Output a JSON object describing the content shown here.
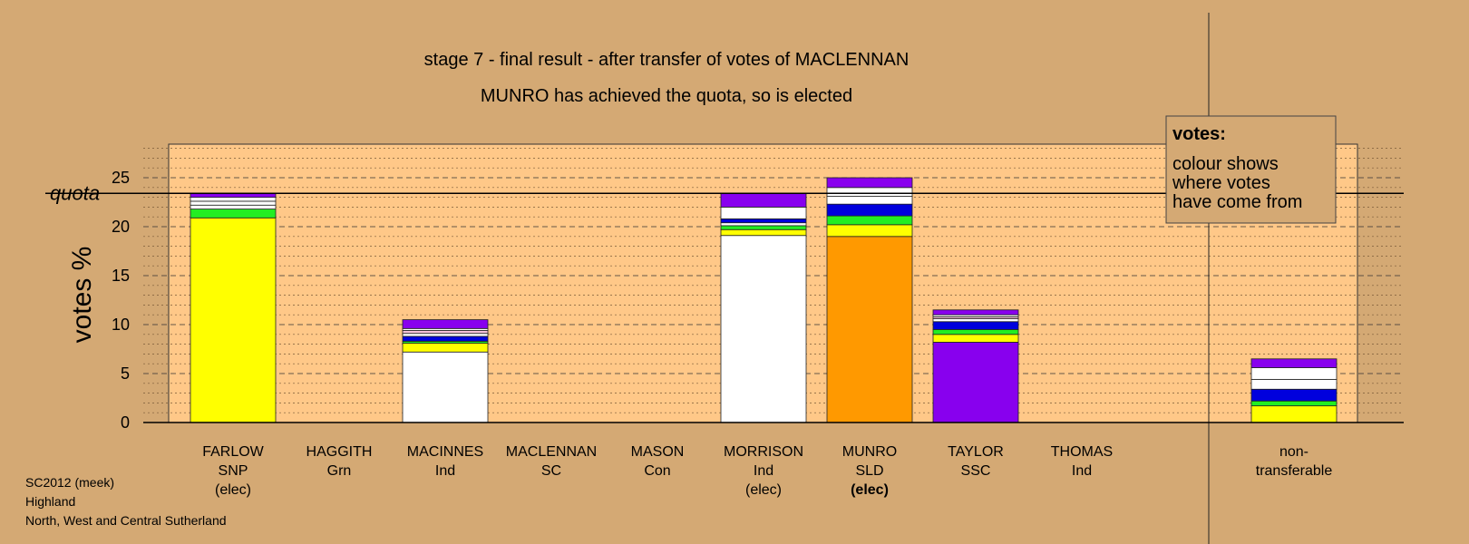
{
  "chart_data": {
    "type": "bar",
    "stacked": true,
    "title": "stage 7 - final result - after transfer of votes of MACLENNAN",
    "subtitle": "MUNRO has achieved the quota, so is elected",
    "ylabel": "votes %",
    "ylim": [
      0,
      28
    ],
    "yticks": [
      0,
      5,
      10,
      15,
      20,
      25
    ],
    "quota": 23.4,
    "quota_label": "quota",
    "grid": true,
    "legend": {
      "title": "votes:",
      "lines": [
        "colour shows",
        "where votes",
        "have come from"
      ],
      "placement": "top-right"
    },
    "colors": {
      "SNP": "#ffff00",
      "Grn": "#22ee22",
      "Ind": "#ffffff",
      "SC": "#0000dd",
      "SLD": "#ff9900",
      "SSC": "#8800ee",
      "pink": "#f3c0d8"
    },
    "candidates": [
      {
        "name": "FARLOW",
        "party": "SNP",
        "status": "(elec)",
        "status_bold": false,
        "segments": [
          {
            "source": "SNP",
            "value": 20.9
          },
          {
            "source": "Grn",
            "value": 0.9
          },
          {
            "source": "Ind",
            "value": 0.4
          },
          {
            "source": "Ind",
            "value": 0.4
          },
          {
            "source": "Ind",
            "value": 0.4
          },
          {
            "source": "SSC",
            "value": 0.4
          }
        ]
      },
      {
        "name": "HAGGITH",
        "party": "Grn",
        "status": "",
        "status_bold": false,
        "segments": []
      },
      {
        "name": "MACINNES",
        "party": "Ind",
        "status": "",
        "status_bold": false,
        "segments": [
          {
            "source": "Ind",
            "value": 7.2
          },
          {
            "source": "SNP",
            "value": 0.9
          },
          {
            "source": "Grn",
            "value": 0.2
          },
          {
            "source": "SC",
            "value": 0.5
          },
          {
            "source": "Ind",
            "value": 0.3
          },
          {
            "source": "pink",
            "value": 0.3
          },
          {
            "source": "Ind",
            "value": 0.2
          },
          {
            "source": "SSC",
            "value": 0.9
          }
        ]
      },
      {
        "name": "MACLENNAN",
        "party": "SC",
        "status": "",
        "status_bold": false,
        "segments": []
      },
      {
        "name": "MASON",
        "party": "Con",
        "status": "",
        "status_bold": false,
        "segments": []
      },
      {
        "name": "MORRISON",
        "party": "Ind",
        "status": "(elec)",
        "status_bold": false,
        "segments": [
          {
            "source": "Ind",
            "value": 19.1
          },
          {
            "source": "SNP",
            "value": 0.6
          },
          {
            "source": "Grn",
            "value": 0.4
          },
          {
            "source": "Ind",
            "value": 0.3
          },
          {
            "source": "SC",
            "value": 0.4
          },
          {
            "source": "Ind",
            "value": 1.2
          },
          {
            "source": "SSC",
            "value": 1.4
          }
        ]
      },
      {
        "name": "MUNRO",
        "party": "SLD",
        "status": "(elec)",
        "status_bold": true,
        "segments": [
          {
            "source": "SLD",
            "value": 19.0
          },
          {
            "source": "SNP",
            "value": 1.2
          },
          {
            "source": "Grn",
            "value": 0.9
          },
          {
            "source": "SC",
            "value": 1.2
          },
          {
            "source": "Ind",
            "value": 0.8
          },
          {
            "source": "Ind",
            "value": 0.9
          },
          {
            "source": "SSC",
            "value": 1.0
          }
        ]
      },
      {
        "name": "TAYLOR",
        "party": "SSC",
        "status": "",
        "status_bold": false,
        "segments": [
          {
            "source": "SSC",
            "value": 8.2
          },
          {
            "source": "SNP",
            "value": 0.8
          },
          {
            "source": "Grn",
            "value": 0.5
          },
          {
            "source": "SC",
            "value": 0.8
          },
          {
            "source": "Ind",
            "value": 0.3
          },
          {
            "source": "pink",
            "value": 0.2
          },
          {
            "source": "Ind",
            "value": 0.2
          },
          {
            "source": "SSC",
            "value": 0.5
          }
        ]
      },
      {
        "name": "THOMAS",
        "party": "Ind",
        "status": "",
        "status_bold": false,
        "segments": []
      }
    ],
    "nontransferable": {
      "label_line1": "non-",
      "label_line2": "transferable",
      "segments": [
        {
          "source": "SNP",
          "value": 1.7
        },
        {
          "source": "Grn",
          "value": 0.5
        },
        {
          "source": "SC",
          "value": 1.2
        },
        {
          "source": "Ind",
          "value": 1.0
        },
        {
          "source": "Ind",
          "value": 1.2
        },
        {
          "source": "SSC",
          "value": 0.9
        }
      ]
    }
  },
  "footer": {
    "line1": "SC2012 (meek)",
    "line2": "Highland",
    "line3": "North, West and Central Sutherland"
  }
}
